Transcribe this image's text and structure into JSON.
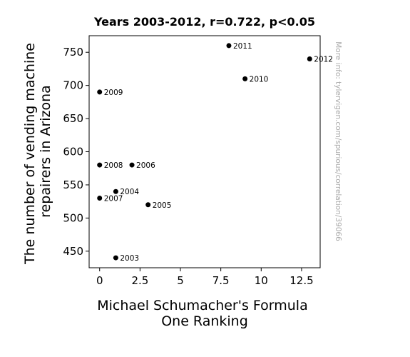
{
  "chart_data": {
    "type": "scatter",
    "title": "Years 2003-2012, r=0.722, p<0.05",
    "xlabel": [
      "Michael Schumacher's Formula",
      "One Ranking"
    ],
    "ylabel": [
      "The number of vending machine",
      "repairers in Arizona"
    ],
    "xlim": [
      -0.65,
      13.65
    ],
    "ylim": [
      425,
      775
    ],
    "xticks": [
      0,
      2.5,
      5,
      7.5,
      10,
      12.5
    ],
    "xtick_labels": [
      "0",
      "2.5",
      "5",
      "7.5",
      "10",
      "12.5"
    ],
    "yticks": [
      450,
      500,
      550,
      600,
      650,
      700,
      750
    ],
    "ytick_labels": [
      "450",
      "500",
      "550",
      "600",
      "650",
      "700",
      "750"
    ],
    "grid": false,
    "marker_color": "#000000",
    "points": [
      {
        "label": "2003",
        "x": 1,
        "y": 440
      },
      {
        "label": "2004",
        "x": 1,
        "y": 540
      },
      {
        "label": "2005",
        "x": 3,
        "y": 520
      },
      {
        "label": "2006",
        "x": 2,
        "y": 580
      },
      {
        "label": "2007",
        "x": 0,
        "y": 530
      },
      {
        "label": "2008",
        "x": 0,
        "y": 580
      },
      {
        "label": "2009",
        "x": 0,
        "y": 690
      },
      {
        "label": "2010",
        "x": 9,
        "y": 710
      },
      {
        "label": "2011",
        "x": 8,
        "y": 760
      },
      {
        "label": "2012",
        "x": 13,
        "y": 740
      }
    ],
    "watermark": "More info: tylervigen.com/spurious/correlation/39066"
  }
}
